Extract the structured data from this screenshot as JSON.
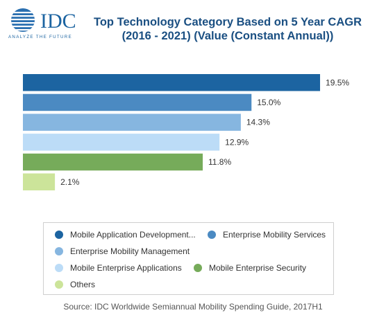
{
  "logo": {
    "text": "IDC",
    "tagline": "ANALYZE THE FUTURE"
  },
  "title_lines": [
    "Top Technology Category Based on 5 Year CAGR",
    "(2016 - 2021) (Value (Constant Annual))"
  ],
  "source": "Source: IDC Worldwide Semiannual Mobility Spending Guide, 2017H1",
  "chart_data": {
    "type": "bar",
    "orientation": "horizontal",
    "title": "Top Technology Category Based on 5 Year CAGR (2016 - 2021) (Value (Constant Annual))",
    "xlim": [
      0,
      20
    ],
    "grid": false,
    "legend_position": "bottom",
    "series": [
      {
        "name": "Mobile Application Development...",
        "value": 19.5,
        "label": "19.5%",
        "color": "#1c64a1"
      },
      {
        "name": "Enterprise Mobility Services",
        "value": 15.0,
        "label": "15.0%",
        "color": "#4b8ac2"
      },
      {
        "name": "Enterprise Mobility Management",
        "value": 14.3,
        "label": "14.3%",
        "color": "#86b6e0"
      },
      {
        "name": "Mobile Enterprise Applications",
        "value": 12.9,
        "label": "12.9%",
        "color": "#bcdcf7"
      },
      {
        "name": "Mobile Enterprise Security",
        "value": 11.8,
        "label": "11.8%",
        "color": "#76ab5a"
      },
      {
        "name": "Others",
        "value": 2.1,
        "label": "2.1%",
        "color": "#cce49a"
      }
    ]
  }
}
